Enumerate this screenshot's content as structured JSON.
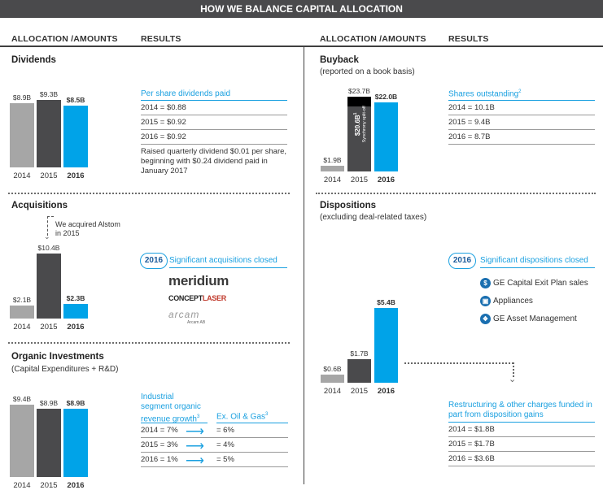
{
  "header": {
    "title": "HOW WE BALANCE CAPITAL ALLOCATION",
    "col_allocation": "ALLOCATION /AMOUNTS",
    "col_results": "RESULTS"
  },
  "colors": {
    "dark": "#4a4a4c",
    "gray": "#a6a6a6",
    "blue": "#00a3e8",
    "black": "#000000"
  },
  "chart_data": [
    {
      "type": "bar",
      "title": "Dividends",
      "categories": [
        "2014",
        "2015",
        "2016"
      ],
      "values": [
        8.9,
        9.3,
        8.5
      ],
      "data_labels": [
        "$8.9B",
        "$9.3B",
        "$8.5B"
      ],
      "unit": "$B"
    },
    {
      "type": "bar",
      "title": "Buyback",
      "subtitle": "(reported on a book basis)",
      "categories": [
        "2014",
        "2015",
        "2016"
      ],
      "values": [
        1.9,
        23.7,
        22.0
      ],
      "data_labels": [
        "$1.9B",
        "$23.7B",
        "$22.0B"
      ],
      "stack_2015": {
        "segment_value": 20.6,
        "segment_label": "$20.6B",
        "segment_footnote": "1",
        "segment_note": "Synchrony split-off"
      },
      "unit": "$B"
    },
    {
      "type": "bar",
      "title": "Acquisitions",
      "categories": [
        "2014",
        "2015",
        "2016"
      ],
      "values": [
        2.1,
        10.4,
        2.3
      ],
      "data_labels": [
        "$2.1B",
        "$10.4B",
        "$2.3B"
      ],
      "annotation": "We acquired Alstom in 2015",
      "unit": "$B"
    },
    {
      "type": "bar",
      "title": "Dispositions",
      "subtitle": "(excluding deal-related taxes)",
      "categories": [
        "2014",
        "2015",
        "2016"
      ],
      "values": [
        0.6,
        1.7,
        5.4
      ],
      "data_labels": [
        "$0.6B",
        "$1.7B",
        "$5.4B"
      ],
      "unit": "$B"
    },
    {
      "type": "bar",
      "title": "Organic Investments",
      "subtitle": "(Capital Expenditures + R&D)",
      "categories": [
        "2014",
        "2015",
        "2016"
      ],
      "values": [
        9.4,
        8.9,
        8.9
      ],
      "data_labels": [
        "$9.4B",
        "$8.9B",
        "$8.9B"
      ],
      "unit": "$B"
    }
  ],
  "results": {
    "dividends": {
      "title": "Per share dividends paid",
      "rows": [
        "2014 = $0.88",
        "2015 = $0.92",
        "2016 = $0.92"
      ],
      "note": "Raised quarterly dividend $0.01 per share, beginning with $0.24 dividend paid in January 2017"
    },
    "buyback": {
      "title": "Shares outstanding",
      "footnote": "2",
      "rows": [
        "2014 = 10.1B",
        "2015 = 9.4B",
        "2016 = 8.7B"
      ]
    },
    "acquisitions": {
      "badge": "2016",
      "title": "Significant acquisitions closed",
      "logos": [
        "meridium",
        "CONCEPT",
        "LASER",
        "arcam",
        "Arcam AB"
      ]
    },
    "dispositions": {
      "badge": "2016",
      "title": "Significant dispositions closed",
      "items": [
        "GE Capital Exit Plan sales",
        "Appliances",
        "GE Asset Management"
      ],
      "restructuring_title": "Restructuring & other charges funded in part from disposition gains",
      "rows": [
        "2014 = $1.8B",
        "2015 = $1.7B",
        "2016 = $3.6B"
      ]
    },
    "organic": {
      "title_line1": "Industrial",
      "title_line2": "segment organic",
      "title_line3": "revenue growth",
      "title_footnote": "3",
      "ex_title": "Ex. Oil & Gas",
      "ex_footnote": "3",
      "rows": [
        {
          "left": "2014 = 7%",
          "right": "= 6%"
        },
        {
          "left": "2015 = 3%",
          "right": "= 4%"
        },
        {
          "left": "2016 = 1%",
          "right": "= 5%"
        }
      ]
    }
  }
}
